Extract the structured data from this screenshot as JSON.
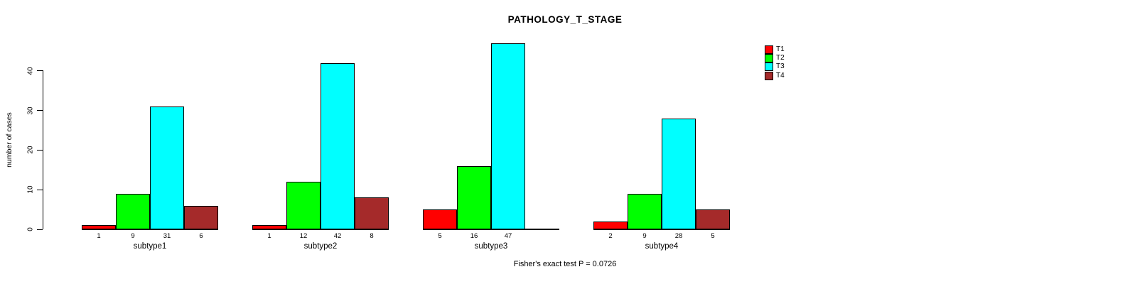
{
  "title": "PATHOLOGY_T_STAGE",
  "footer": "Fisher's exact test P = 0.0726",
  "y_axis": {
    "label": "number of cases",
    "ticks": [
      0,
      10,
      20,
      30,
      40
    ]
  },
  "legend": {
    "entries": [
      {
        "label": "T1",
        "color": "#FF0000"
      },
      {
        "label": "T2",
        "color": "#00FF00"
      },
      {
        "label": "T3",
        "color": "#00FFFF"
      },
      {
        "label": "T4",
        "color": "#A52A2A"
      }
    ]
  },
  "chart_data": {
    "type": "bar",
    "title": "PATHOLOGY_T_STAGE",
    "categories": [
      "subtype1",
      "subtype2",
      "subtype3",
      "subtype4"
    ],
    "series": [
      {
        "name": "T1",
        "color": "#FF0000",
        "values": [
          1,
          1,
          5,
          2
        ]
      },
      {
        "name": "T2",
        "color": "#00FF00",
        "values": [
          9,
          12,
          16,
          9
        ]
      },
      {
        "name": "T3",
        "color": "#00FFFF",
        "values": [
          31,
          42,
          47,
          28
        ]
      },
      {
        "name": "T4",
        "color": "#A52A2A",
        "values": [
          6,
          8,
          0,
          5
        ]
      }
    ],
    "bar_value_labels": [
      [
        "1",
        "9",
        "31",
        "6"
      ],
      [
        "1",
        "12",
        "42",
        "8"
      ],
      [
        "5",
        "16",
        "47",
        ""
      ],
      [
        "2",
        "9",
        "28",
        "5"
      ]
    ],
    "xlabel": "",
    "ylabel": "number of cases",
    "ylim": [
      0,
      47
    ],
    "y_ticks": [
      0,
      10,
      20,
      30,
      40
    ],
    "grid": false,
    "legend_position": "right",
    "annotation": "Fisher's exact test P = 0.0726"
  }
}
